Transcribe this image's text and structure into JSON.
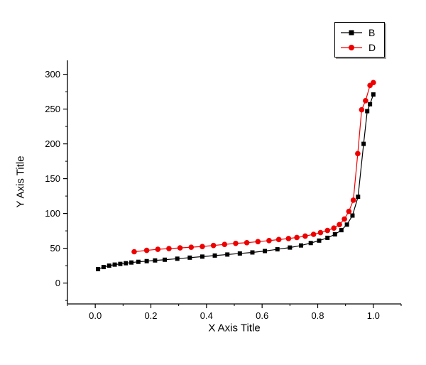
{
  "chart_data": {
    "type": "line",
    "title": "",
    "xlabel": "X Axis Title",
    "ylabel": "Y Axis Title",
    "xlim": [
      -0.1,
      1.1
    ],
    "ylim": [
      -30,
      320
    ],
    "x_ticks": [
      0.0,
      0.2,
      0.4,
      0.6,
      0.8,
      1.0
    ],
    "x_tick_labels": [
      "0.0",
      "0.2",
      "0.4",
      "0.6",
      "0.8",
      "1.0"
    ],
    "y_ticks": [
      0,
      50,
      100,
      150,
      200,
      250,
      300
    ],
    "y_tick_labels": [
      "0",
      "50",
      "100",
      "150",
      "200",
      "250",
      "300"
    ],
    "x_minor_step": 0.1,
    "y_minor_step": 25,
    "grid": false,
    "legend_position": "top-right",
    "series": [
      {
        "name": "B",
        "color": "#000000",
        "marker": "square",
        "points": [
          [
            0.01,
            20
          ],
          [
            0.03,
            23
          ],
          [
            0.05,
            25
          ],
          [
            0.07,
            26.5
          ],
          [
            0.09,
            27.5
          ],
          [
            0.11,
            28.5
          ],
          [
            0.13,
            29.5
          ],
          [
            0.155,
            30.5
          ],
          [
            0.185,
            31.5
          ],
          [
            0.215,
            32.5
          ],
          [
            0.25,
            33.5
          ],
          [
            0.295,
            35
          ],
          [
            0.34,
            36.5
          ],
          [
            0.385,
            38
          ],
          [
            0.43,
            39.5
          ],
          [
            0.475,
            41
          ],
          [
            0.52,
            42.5
          ],
          [
            0.565,
            44
          ],
          [
            0.61,
            46
          ],
          [
            0.655,
            48.5
          ],
          [
            0.7,
            51
          ],
          [
            0.74,
            54
          ],
          [
            0.775,
            57.5
          ],
          [
            0.805,
            61
          ],
          [
            0.835,
            65
          ],
          [
            0.862,
            70
          ],
          [
            0.885,
            76
          ],
          [
            0.905,
            84
          ],
          [
            0.925,
            97
          ],
          [
            0.945,
            124
          ],
          [
            0.965,
            200
          ],
          [
            0.978,
            247
          ],
          [
            0.988,
            257
          ],
          [
            1.0,
            271
          ]
        ]
      },
      {
        "name": "D",
        "color": "#ee0000",
        "marker": "circle",
        "points": [
          [
            0.14,
            45
          ],
          [
            0.185,
            47
          ],
          [
            0.225,
            48.5
          ],
          [
            0.265,
            49.5
          ],
          [
            0.305,
            50.5
          ],
          [
            0.345,
            51.5
          ],
          [
            0.385,
            52.5
          ],
          [
            0.425,
            54
          ],
          [
            0.465,
            55.5
          ],
          [
            0.505,
            57
          ],
          [
            0.545,
            58
          ],
          [
            0.585,
            59.5
          ],
          [
            0.625,
            61
          ],
          [
            0.66,
            62.5
          ],
          [
            0.695,
            64
          ],
          [
            0.725,
            65.5
          ],
          [
            0.755,
            67.5
          ],
          [
            0.785,
            70
          ],
          [
            0.81,
            72.5
          ],
          [
            0.835,
            75.5
          ],
          [
            0.858,
            79
          ],
          [
            0.878,
            84
          ],
          [
            0.896,
            92
          ],
          [
            0.912,
            103
          ],
          [
            0.928,
            119
          ],
          [
            0.944,
            186
          ],
          [
            0.958,
            249
          ],
          [
            0.972,
            262
          ],
          [
            0.988,
            284
          ],
          [
            1.0,
            288
          ]
        ]
      }
    ]
  }
}
